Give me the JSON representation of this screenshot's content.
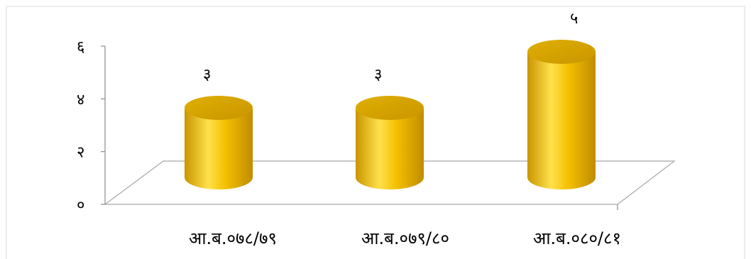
{
  "chart_data": {
    "type": "bar",
    "style": "3d-cylinder",
    "categories": [
      "आ.ब.०७८/७९",
      "आ.ब.०७९/८०",
      "आ.ब.०८०/८१"
    ],
    "values": [
      3,
      3,
      5
    ],
    "data_labels": [
      "३",
      "३",
      "५"
    ],
    "yticks": [
      0,
      2,
      4,
      6
    ],
    "ytick_labels": [
      "०",
      "२",
      "४",
      "६"
    ],
    "ylim": [
      0,
      6
    ],
    "title": "",
    "xlabel": "",
    "ylabel": "",
    "grid": false,
    "legend": "none",
    "colors": {
      "bar_light": "#ffe14d",
      "bar_mid": "#f4c000",
      "bar_dark": "#c99500",
      "top": "#d8a800"
    }
  }
}
